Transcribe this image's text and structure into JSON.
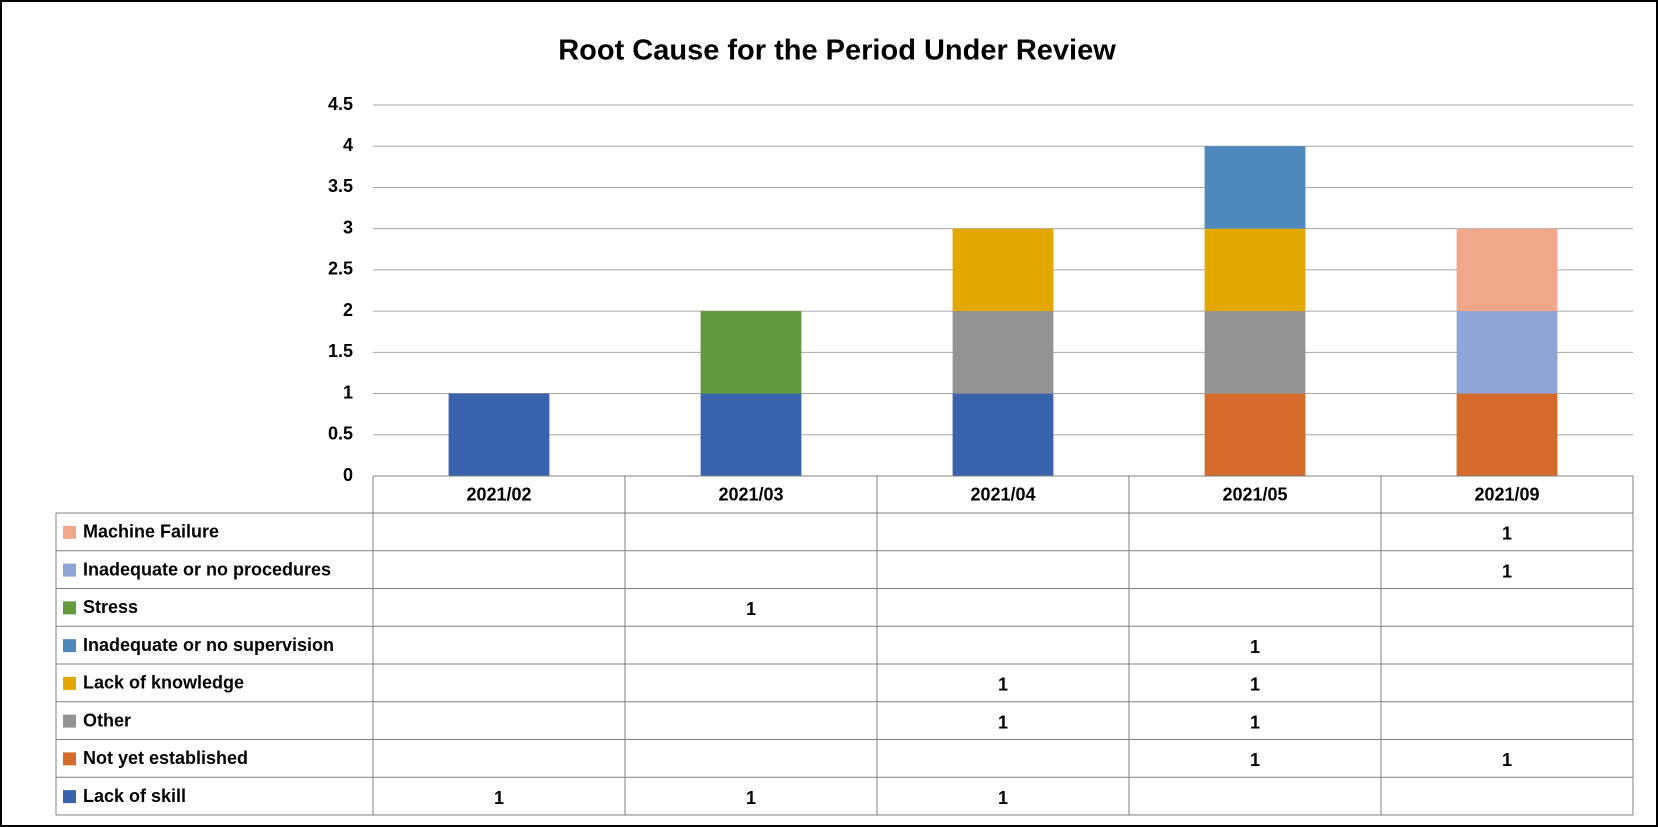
{
  "chart_data": {
    "type": "bar",
    "stacked": true,
    "title": "Root Cause for the Period Under Review",
    "categories": [
      "2021/02",
      "2021/03",
      "2021/04",
      "2021/05",
      "2021/09"
    ],
    "series": [
      {
        "name": "Lack of skill",
        "color": "#3a63ad",
        "values": [
          1,
          1,
          1,
          null,
          null
        ]
      },
      {
        "name": "Not yet established",
        "color": "#d46b2a",
        "values": [
          null,
          null,
          null,
          1,
          1
        ]
      },
      {
        "name": "Other",
        "color": "#939393",
        "values": [
          null,
          null,
          1,
          1,
          null
        ]
      },
      {
        "name": "Lack of knowledge",
        "color": "#e3a800",
        "values": [
          null,
          null,
          1,
          1,
          null
        ]
      },
      {
        "name": "Inadequate or no supervision",
        "color": "#4e89be",
        "values": [
          null,
          null,
          null,
          1,
          null
        ]
      },
      {
        "name": "Stress",
        "color": "#629a3e",
        "values": [
          null,
          1,
          null,
          null,
          null
        ]
      },
      {
        "name": "Inadequate or no procedures",
        "color": "#8fa5d6",
        "values": [
          null,
          null,
          null,
          null,
          1
        ]
      },
      {
        "name": "Machine Failure",
        "color": "#f0a78a",
        "values": [
          null,
          null,
          null,
          null,
          1
        ]
      }
    ],
    "ylim": [
      0,
      4.5
    ],
    "yticks": [
      0,
      0.5,
      1,
      1.5,
      2,
      2.5,
      3,
      3.5,
      4,
      4.5
    ],
    "grid": true,
    "data_table": true
  }
}
